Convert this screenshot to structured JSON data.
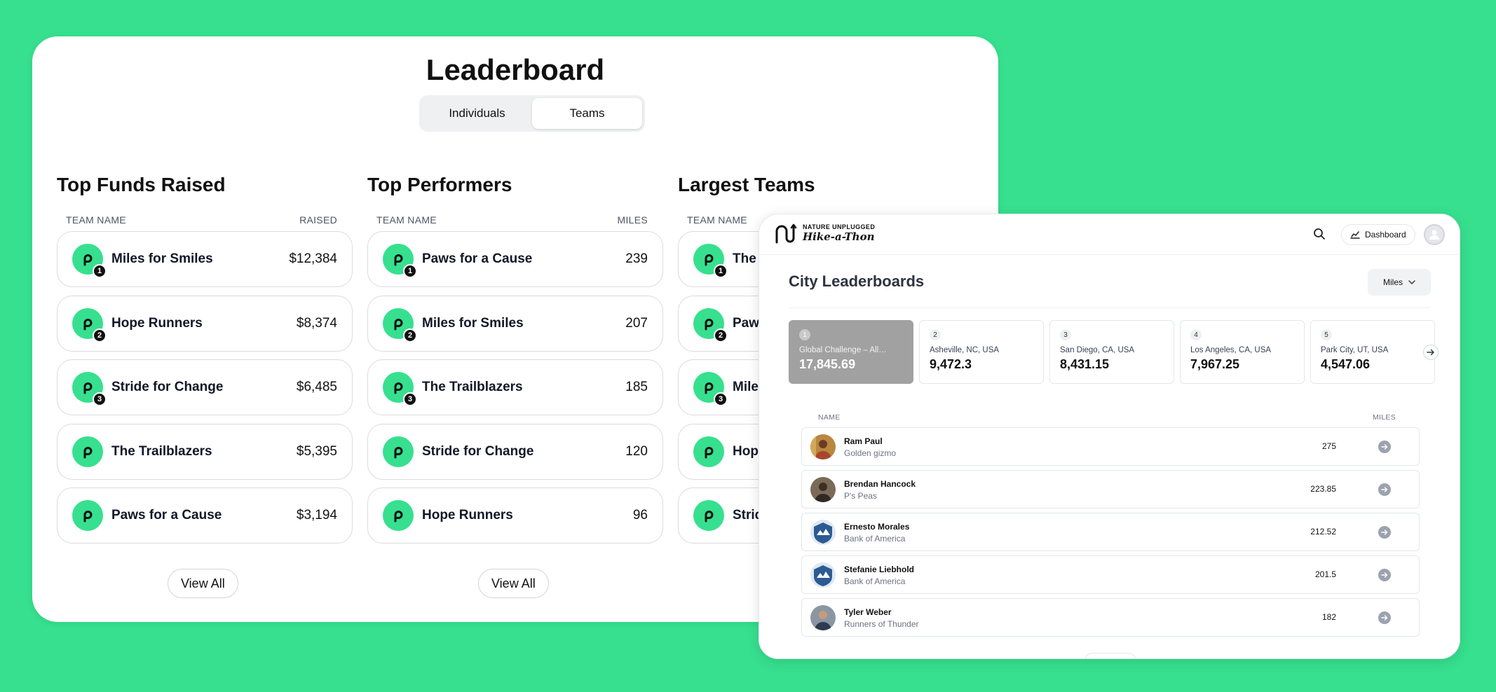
{
  "leaderboard": {
    "title": "Leaderboard",
    "tabs": [
      "Individuals",
      "Teams"
    ],
    "active_tab": "Teams",
    "view_all_label": "View All",
    "columns": [
      {
        "title": "Top Funds Raised",
        "head_left": "TEAM NAME",
        "head_right": "RAISED",
        "rows": [
          {
            "rank": "1",
            "name": "Miles for Smiles",
            "value": "$12,384"
          },
          {
            "rank": "2",
            "name": "Hope Runners",
            "value": "$8,374"
          },
          {
            "rank": "3",
            "name": "Stride for Change",
            "value": "$6,485"
          },
          {
            "rank": "",
            "name": "The Trailblazers",
            "value": "$5,395"
          },
          {
            "rank": "",
            "name": "Paws for a Cause",
            "value": "$3,194"
          }
        ]
      },
      {
        "title": "Top Performers",
        "head_left": "TEAM NAME",
        "head_right": "MILES",
        "rows": [
          {
            "rank": "1",
            "name": "Paws for a Cause",
            "value": "239"
          },
          {
            "rank": "2",
            "name": "Miles for Smiles",
            "value": "207"
          },
          {
            "rank": "3",
            "name": "The Trailblazers",
            "value": "185"
          },
          {
            "rank": "",
            "name": "Stride for Change",
            "value": "120"
          },
          {
            "rank": "",
            "name": "Hope Runners",
            "value": "96"
          }
        ]
      },
      {
        "title": "Largest Teams",
        "head_left": "TEAM NAME",
        "head_right": "",
        "rows": [
          {
            "rank": "1",
            "name": "The T",
            "value": ""
          },
          {
            "rank": "2",
            "name": "Paw",
            "value": ""
          },
          {
            "rank": "3",
            "name": "Miles",
            "value": ""
          },
          {
            "rank": "",
            "name": "Hope",
            "value": ""
          },
          {
            "rank": "",
            "name": "Strid",
            "value": ""
          }
        ]
      }
    ]
  },
  "city": {
    "brand_small": "NATURE UNPLUGGED",
    "brand_big": "Hike-a-Thon",
    "dashboard_label": "Dashboard",
    "title": "City Leaderboards",
    "metric_select": "Miles",
    "tiles": [
      {
        "rank": "1",
        "location": "Global Challenge – All…",
        "value": "17,845.69"
      },
      {
        "rank": "2",
        "location": "Asheville, NC, USA",
        "value": "9,472.3"
      },
      {
        "rank": "3",
        "location": "San Diego, CA, USA",
        "value": "8,431.15"
      },
      {
        "rank": "4",
        "location": "Los Angeles, CA, USA",
        "value": "7,967.25"
      },
      {
        "rank": "5",
        "location": "Park City, UT, USA",
        "value": "4,547.06"
      }
    ],
    "table_head": {
      "name": "NAME",
      "miles": "MILES"
    },
    "people": [
      {
        "name": "Ram Paul",
        "team": "Golden gizmo",
        "miles": "275"
      },
      {
        "name": "Brendan Hancock",
        "team": "P's Peas",
        "miles": "223.85"
      },
      {
        "name": "Ernesto Morales",
        "team": "Bank of America",
        "miles": "212.52"
      },
      {
        "name": "Stefanie Liebhold",
        "team": "Bank of America",
        "miles": "201.5"
      },
      {
        "name": "Tyler Weber",
        "team": "Runners of Thunder",
        "miles": "182"
      }
    ]
  },
  "colors": {
    "brand_green": "#36e08e",
    "active_tile": "#a1a1a1"
  }
}
